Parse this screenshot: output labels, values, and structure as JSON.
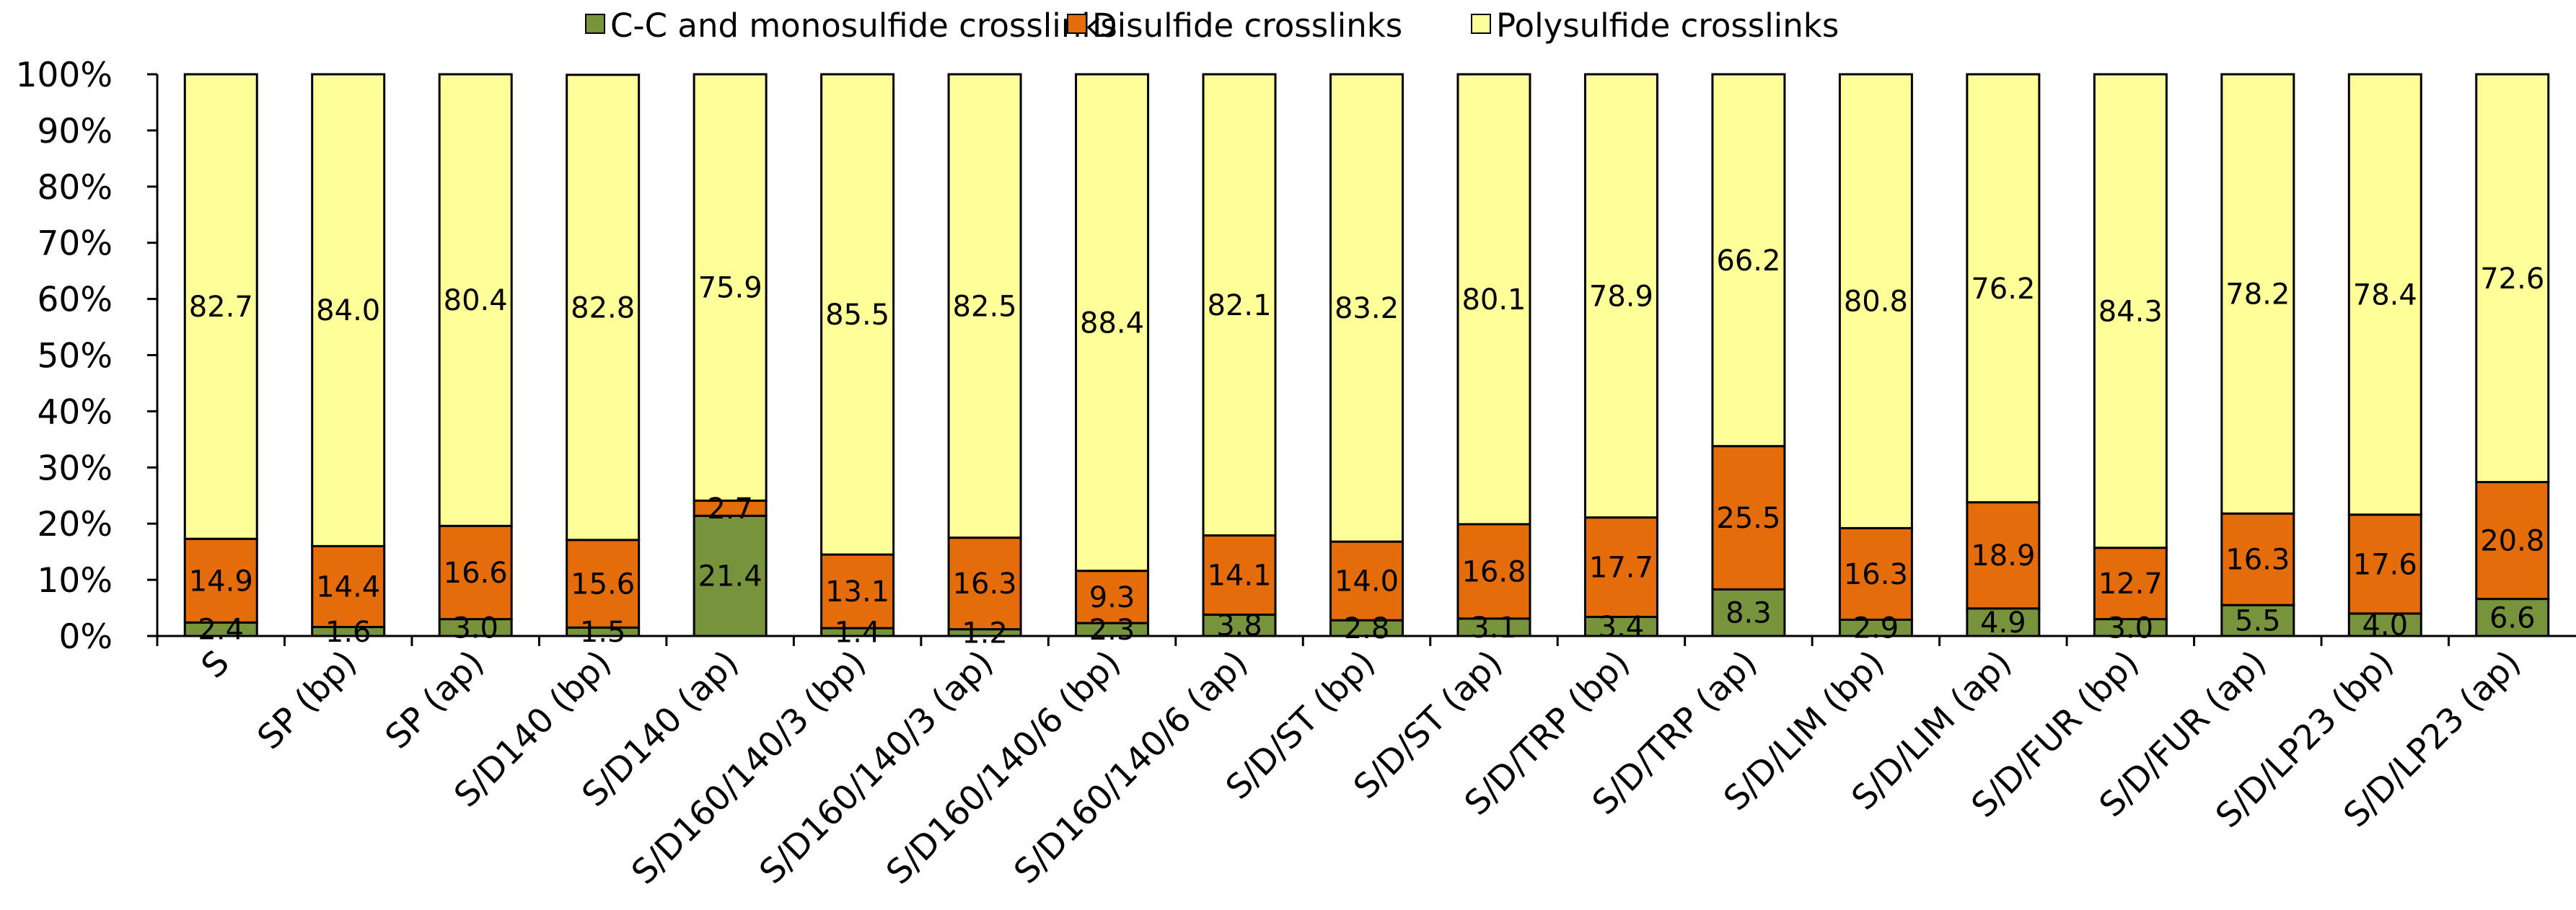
{
  "chart_data": {
    "type": "bar",
    "stacked": true,
    "title": "",
    "xlabel": "",
    "ylabel": "",
    "ylim": [
      0,
      100
    ],
    "ytick_labels": [
      "0%",
      "10%",
      "20%",
      "30%",
      "40%",
      "50%",
      "60%",
      "70%",
      "80%",
      "90%",
      "100%"
    ],
    "legend_position": "top-center",
    "categories": [
      "S",
      "SP (bp)",
      "SP (ap)",
      "S/D140 (bp)",
      "S/D140 (ap)",
      "S/D160/140/3 (bp)",
      "S/D160/140/3 (ap)",
      "S/D160/140/6 (bp)",
      "S/D160/140/6 (ap)",
      "S/D/ST (bp)",
      "S/D/ST (ap)",
      "S/D/TRP (bp)",
      "S/D/TRP (ap)",
      "S/D/LIM (bp)",
      "S/D/LIM (ap)",
      "S/D/FUR (bp)",
      "S/D/FUR (ap)",
      "S/D/LP23 (bp)",
      "S/D/LP23 (ap)"
    ],
    "series": [
      {
        "name": "C-C and monosulfide crosslinks",
        "color": "#77933C",
        "values": [
          2.4,
          1.6,
          3.0,
          1.5,
          21.4,
          1.4,
          1.2,
          2.3,
          3.8,
          2.8,
          3.1,
          3.4,
          8.3,
          2.9,
          4.9,
          3.0,
          5.5,
          4.0,
          6.6
        ],
        "labels": [
          "2.4",
          "1.6",
          "3.0",
          "1.5",
          "21.4",
          "1.4",
          "1.2",
          "2.3",
          "3.8",
          "2.8",
          "3.1",
          "3.4",
          "8.3",
          "2.9",
          "4.9",
          "3.0",
          "5.5",
          "4.0",
          "6.6"
        ]
      },
      {
        "name": "Disulfide crosslinks",
        "color": "#E46C0A",
        "values": [
          14.9,
          14.4,
          16.6,
          15.6,
          2.7,
          13.1,
          16.3,
          9.3,
          14.1,
          14.0,
          16.8,
          17.7,
          25.5,
          16.3,
          18.9,
          12.7,
          16.3,
          17.6,
          20.8
        ],
        "labels": [
          "14.9",
          "14.4",
          "16.6",
          "15.6",
          "2.7",
          "13.1",
          "16.3",
          "9.3",
          "14.1",
          "14.0",
          "16.8",
          "17.7",
          "25.5",
          "16.3",
          "18.9",
          "12.7",
          "16.3",
          "17.6",
          "20.8"
        ]
      },
      {
        "name": "Polysulfide crosslinks",
        "color": "#FFFF99",
        "values": [
          82.7,
          84.0,
          80.4,
          82.8,
          75.9,
          85.5,
          82.5,
          88.4,
          82.1,
          83.2,
          80.1,
          78.9,
          66.2,
          80.8,
          76.2,
          84.3,
          78.2,
          78.4,
          72.6
        ],
        "labels": [
          "82.7",
          "84.0",
          "80.4",
          "82.8",
          "75.9",
          "85.5",
          "82.5",
          "88.4",
          "82.1",
          "83.2",
          "80.1",
          "78.9",
          "66.2",
          "80.8",
          "76.2",
          "84.3",
          "78.2",
          "78.4",
          "72.6"
        ]
      }
    ]
  }
}
